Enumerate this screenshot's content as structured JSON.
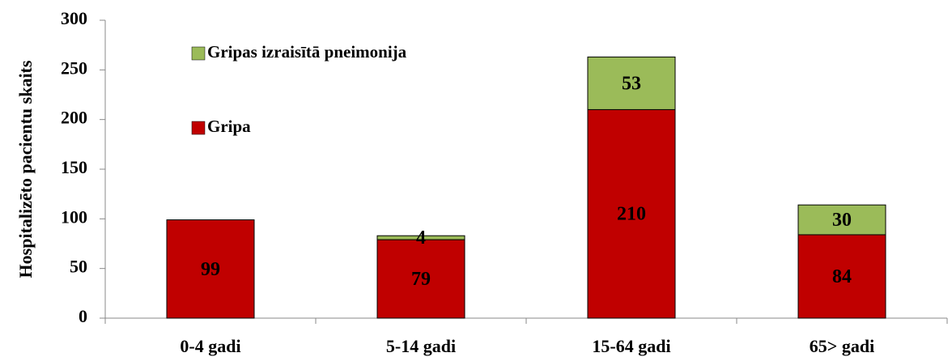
{
  "chart_data": {
    "type": "stacked_bar",
    "y_label": "Hospitalizēto pacientu skaits",
    "categories": [
      "0-4 gadi",
      "5-14 gadi",
      "15-64 gadi",
      "65> gadi"
    ],
    "series": [
      {
        "name": "Gripa",
        "color": "#c00000",
        "values": [
          99,
          79,
          210,
          84
        ]
      },
      {
        "name": "Gripas izraisītā pneimonija",
        "color": "#9bbb59",
        "values": [
          null,
          4,
          53,
          30
        ]
      }
    ],
    "ylim": [
      0,
      300
    ],
    "yticks": [
      0,
      50,
      100,
      150,
      200,
      250,
      300
    ]
  }
}
